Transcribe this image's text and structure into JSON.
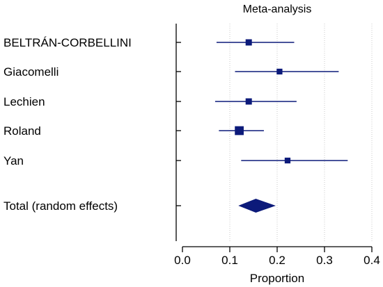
{
  "chart_data": {
    "type": "forest",
    "title": "Meta-analysis",
    "xlabel": "Proportion",
    "xlim": [
      -0.02,
      0.42
    ],
    "xticks": [
      0.0,
      0.1,
      0.2,
      0.3,
      0.4
    ],
    "tick_labels": [
      "0.0",
      "0.1",
      "0.2",
      "0.3",
      "0.4"
    ],
    "gridlines": [
      0.1,
      0.2,
      0.3,
      0.4
    ],
    "grid": true,
    "studies": [
      {
        "name": "BELTRÁN-CORBELLINI",
        "estimate": 0.14,
        "ci": [
          0.072,
          0.236
        ],
        "weight": 1.0
      },
      {
        "name": "Giacomelli",
        "estimate": 0.205,
        "ci": [
          0.111,
          0.33
        ],
        "weight": 0.85
      },
      {
        "name": "Lechien",
        "estimate": 0.14,
        "ci": [
          0.069,
          0.241
        ],
        "weight": 1.0
      },
      {
        "name": "Roland",
        "estimate": 0.12,
        "ci": [
          0.077,
          0.172
        ],
        "weight": 2.0
      },
      {
        "name": "Yan",
        "estimate": 0.222,
        "ci": [
          0.124,
          0.349
        ],
        "weight": 0.85
      }
    ],
    "total": {
      "name": "Total (random effects)",
      "estimate": 0.155,
      "ci": [
        0.118,
        0.197
      ]
    },
    "colors": {
      "marker": "#0c1a7a",
      "axis": "#000000",
      "grid": "#c9c9c9"
    }
  }
}
